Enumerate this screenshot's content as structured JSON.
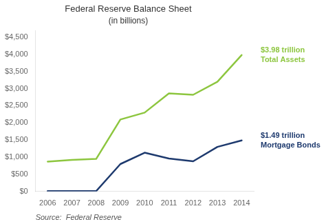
{
  "chart_data": {
    "type": "line",
    "title": "Federal Reserve Balance Sheet",
    "subtitle": "(in billions)",
    "x": [
      2006,
      2007,
      2008,
      2009,
      2010,
      2011,
      2012,
      2013,
      2014
    ],
    "xlim": [
      2005.5,
      2014.5
    ],
    "xticks": [
      2006,
      2007,
      2008,
      2009,
      2010,
      2011,
      2012,
      2013,
      2014
    ],
    "series": [
      {
        "color": "#8dc63f",
        "values": [
          870,
          920,
          950,
          2100,
          2300,
          2860,
          2820,
          3200,
          3980
        ]
      },
      {
        "color": "#1e3a6e",
        "values": [
          10,
          10,
          10,
          800,
          1130,
          960,
          880,
          1300,
          1490
        ]
      }
    ],
    "ylim": [
      0,
      4700
    ],
    "yticks": [
      {
        "value": 0,
        "label": "$0"
      },
      {
        "value": 500,
        "label": "$500"
      },
      {
        "value": 1000,
        "label": "$1,000"
      },
      {
        "value": 1500,
        "label": "$1,500"
      },
      {
        "value": 2000,
        "label": "$2,000"
      },
      {
        "value": 2500,
        "label": "$2,500"
      },
      {
        "value": 3000,
        "label": "$3,000"
      },
      {
        "value": 3500,
        "label": "$3,500"
      },
      {
        "value": 4000,
        "label": "$4,000"
      },
      {
        "value": 4500,
        "label": "$4,500"
      }
    ],
    "annotations": [
      "$3.98 trillion\nTotal Assets",
      "$1.49 trillion\nMortgage Bonds"
    ],
    "source": "Source:  Federal Reserve",
    "grid": false
  }
}
